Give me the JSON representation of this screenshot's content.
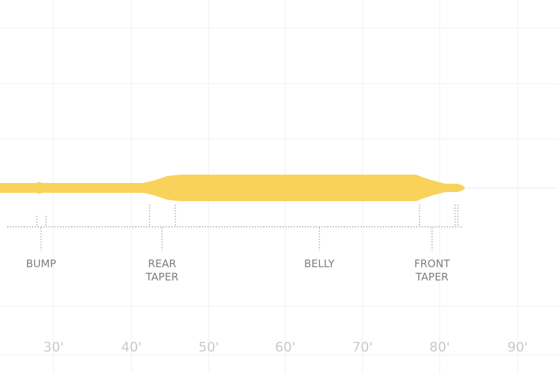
{
  "diagram": {
    "line_color": "#f8d25a",
    "grid_color": "#efefef",
    "marker_color": "#9a9a9a",
    "sections": [
      {
        "key": "bump",
        "lines": [
          "BUMP"
        ]
      },
      {
        "key": "rear-taper",
        "lines": [
          "REAR",
          "TAPER"
        ]
      },
      {
        "key": "belly",
        "lines": [
          "BELLY"
        ]
      },
      {
        "key": "front-taper",
        "lines": [
          "FRONT",
          "TAPER"
        ]
      }
    ],
    "axis": {
      "unit_suffix": "'",
      "ticks": [
        "30'",
        "40'",
        "50'",
        "60'",
        "70'",
        "80'",
        "90'"
      ]
    }
  }
}
